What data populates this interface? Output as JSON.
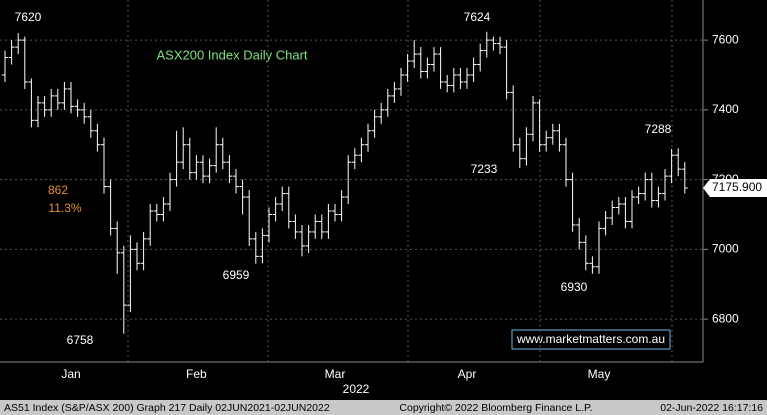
{
  "chart_data": {
    "type": "ohlc",
    "title": "ASX200 Index Daily Chart",
    "categories": [
      null,
      null,
      null,
      null,
      null,
      null,
      null,
      null,
      null,
      null,
      "Jan",
      null,
      null,
      null,
      null,
      null,
      null,
      null,
      null,
      null,
      null,
      null,
      null,
      null,
      null,
      null,
      null,
      null,
      null,
      "Feb",
      null,
      null,
      null,
      null,
      null,
      null,
      null,
      null,
      null,
      null,
      null,
      null,
      null,
      null,
      null,
      null,
      null,
      null,
      null,
      null,
      "Mar",
      null,
      null,
      null,
      null,
      null,
      null,
      null,
      null,
      null,
      null,
      null,
      null,
      null,
      null,
      null,
      null,
      null,
      null,
      null,
      "Apr",
      null,
      null,
      null,
      null,
      null,
      null,
      null,
      null,
      null,
      null,
      null,
      null,
      null,
      null,
      null,
      null,
      null,
      null,
      null,
      "May",
      null,
      null,
      null,
      null,
      null,
      null,
      null,
      null,
      null,
      null,
      null,
      null,
      null
    ],
    "x_label": "2022",
    "open": [
      7500,
      7550,
      7580,
      7600,
      7480,
      7370,
      7420,
      7400,
      7440,
      7420,
      7460,
      7410,
      7400,
      7380,
      7340,
      7300,
      7180,
      7060,
      6990,
      6840,
      7000,
      6960,
      7030,
      7110,
      7100,
      7130,
      7200,
      7250,
      7300,
      7220,
      7250,
      7210,
      7240,
      7300,
      7250,
      7210,
      7180,
      7150,
      7030,
      6980,
      7040,
      7100,
      7130,
      7160,
      7080,
      7050,
      7010,
      7050,
      7080,
      7050,
      7110,
      7100,
      7150,
      7250,
      7270,
      7300,
      7340,
      7380,
      7400,
      7440,
      7460,
      7500,
      7540,
      7560,
      7510,
      7530,
      7560,
      7480,
      7470,
      7500,
      7480,
      7500,
      7530,
      7570,
      7600,
      7590,
      7580,
      7450,
      7300,
      7260,
      7330,
      7420,
      7300,
      7320,
      7340,
      7300,
      7200,
      7070,
      7020,
      6960,
      6950,
      7060,
      7090,
      7120,
      7130,
      7080,
      7150,
      7160,
      7200,
      7140,
      7160,
      7210,
      7270,
      7230
    ],
    "high": [
      7570,
      7600,
      7620,
      7610,
      7490,
      7440,
      7440,
      7460,
      7460,
      7480,
      7480,
      7430,
      7420,
      7400,
      7360,
      7320,
      7200,
      7080,
      7010,
      7040,
      7020,
      7050,
      7130,
      7130,
      7150,
      7220,
      7340,
      7350,
      7320,
      7270,
      7270,
      7260,
      7350,
      7320,
      7270,
      7230,
      7200,
      7170,
      7050,
      7060,
      7120,
      7150,
      7180,
      7180,
      7100,
      7070,
      7070,
      7100,
      7100,
      7130,
      7130,
      7170,
      7270,
      7290,
      7320,
      7360,
      7400,
      7420,
      7460,
      7480,
      7520,
      7560,
      7600,
      7580,
      7550,
      7580,
      7580,
      7500,
      7520,
      7520,
      7520,
      7550,
      7590,
      7624,
      7610,
      7610,
      7600,
      7470,
      7320,
      7350,
      7440,
      7430,
      7340,
      7360,
      7360,
      7320,
      7220,
      7090,
      7040,
      6980,
      7080,
      7110,
      7140,
      7150,
      7150,
      7170,
      7180,
      7220,
      7220,
      7180,
      7230,
      7288,
      7290,
      7250
    ],
    "low": [
      7480,
      7530,
      7560,
      7460,
      7350,
      7350,
      7380,
      7380,
      7400,
      7400,
      7390,
      7380,
      7360,
      7320,
      7280,
      7160,
      7040,
      6930,
      6758,
      6820,
      6940,
      6940,
      7010,
      7080,
      7080,
      7110,
      7180,
      7230,
      7200,
      7200,
      7190,
      7190,
      7220,
      7230,
      7190,
      7160,
      7100,
      7010,
      6959,
      6960,
      7020,
      7080,
      7110,
      7060,
      7030,
      6980,
      6990,
      7030,
      7030,
      7030,
      7080,
      7080,
      7130,
      7230,
      7250,
      7280,
      7320,
      7360,
      7380,
      7420,
      7440,
      7480,
      7520,
      7490,
      7490,
      7510,
      7460,
      7450,
      7450,
      7460,
      7460,
      7480,
      7510,
      7550,
      7570,
      7560,
      7430,
      7280,
      7233,
      7240,
      7310,
      7280,
      7280,
      7300,
      7280,
      7180,
      7050,
      7000,
      6940,
      6930,
      6930,
      7040,
      7070,
      7100,
      7060,
      7060,
      7130,
      7140,
      7120,
      7120,
      7140,
      7190,
      7210,
      7160
    ],
    "close": [
      7550,
      7580,
      7600,
      7480,
      7370,
      7420,
      7400,
      7440,
      7420,
      7460,
      7410,
      7400,
      7380,
      7340,
      7300,
      7180,
      7060,
      6990,
      6840,
      7000,
      6960,
      7030,
      7110,
      7100,
      7130,
      7200,
      7250,
      7300,
      7220,
      7250,
      7210,
      7240,
      7300,
      7250,
      7210,
      7180,
      7150,
      7030,
      6980,
      7040,
      7100,
      7130,
      7160,
      7080,
      7050,
      7010,
      7050,
      7080,
      7050,
      7110,
      7100,
      7150,
      7250,
      7270,
      7300,
      7340,
      7380,
      7400,
      7440,
      7460,
      7500,
      7540,
      7560,
      7510,
      7530,
      7560,
      7480,
      7470,
      7500,
      7480,
      7500,
      7530,
      7570,
      7600,
      7590,
      7580,
      7450,
      7300,
      7260,
      7330,
      7420,
      7300,
      7320,
      7340,
      7300,
      7200,
      7070,
      7020,
      6960,
      6950,
      7060,
      7090,
      7120,
      7130,
      7080,
      7150,
      7160,
      7200,
      7140,
      7160,
      7210,
      7270,
      7230,
      7175.9
    ],
    "color": "#ffffff",
    "last_price": {
      "value": 7175.9,
      "label": "7175.900"
    },
    "ylim": [
      6677,
      7715
    ],
    "yticks": [
      6800,
      7000,
      7200,
      7400,
      7600
    ],
    "grid": true,
    "annotations": [
      "7620",
      "6758",
      "6959",
      "7624",
      "7233",
      "6930",
      "7288",
      "862",
      "11.3%"
    ],
    "watermark": "www.marketmatters.com.au",
    "footer": {
      "left": "AS51 Index (S&P/ASX 200) Graph 217  Daily 02JUN2021-02JUN2022",
      "center": "Copyright© 2022 Bloomberg Finance L.P.",
      "right": "02-Jun-2022 16:17:16"
    }
  }
}
